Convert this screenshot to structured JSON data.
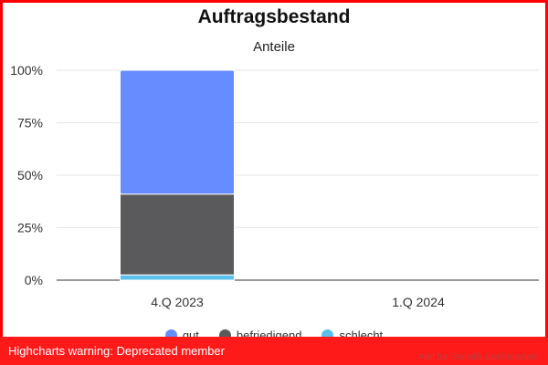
{
  "chart_data": {
    "type": "bar",
    "stacked": true,
    "title": "Auftragsbestand",
    "subtitle": "Anteile",
    "categories": [
      "4.Q 2023",
      "1.Q 2024"
    ],
    "series": [
      {
        "name": "gut",
        "color": "#668cff",
        "values": [
          59,
          null
        ]
      },
      {
        "name": "befriedigend",
        "color": "#5a5a5c",
        "values": [
          38.5,
          null
        ]
      },
      {
        "name": "schlecht",
        "color": "#5bc0eb",
        "values": [
          2.5,
          null
        ]
      }
    ],
    "yticks": [
      "0%",
      "25%",
      "50%",
      "75%",
      "100%"
    ],
    "ylim": [
      0,
      100
    ],
    "grid": true,
    "legend_position": "bottom"
  },
  "warning": "Highcharts warning: Deprecated member",
  "credits": "Amt für Statistik Liechtenstein"
}
